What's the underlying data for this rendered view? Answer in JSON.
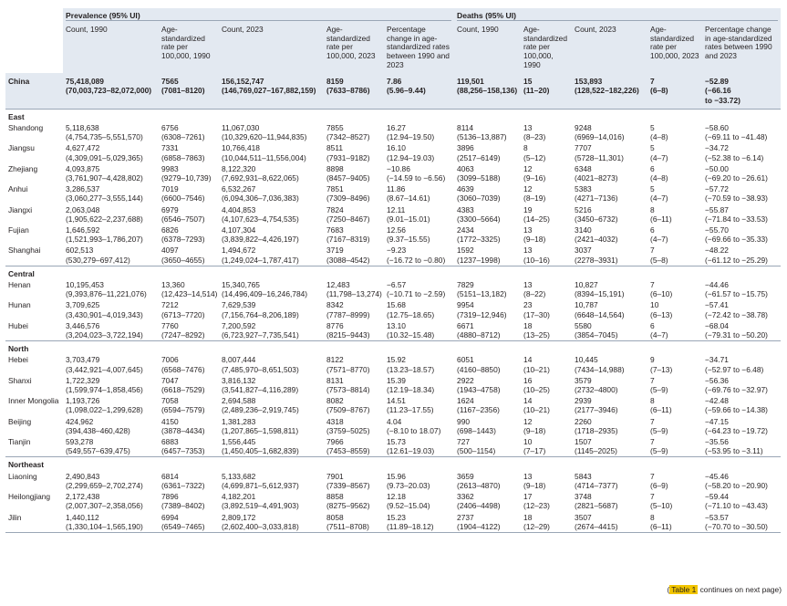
{
  "header": {
    "group_prevalence": "Prevalence (95% UI)",
    "group_deaths": "Deaths (95% UI)",
    "columns": [
      "Count, 1990",
      "Age-standardized rate per 100,000, 1990",
      "Count, 2023",
      "Age-standardized rate per 100,000, 2023",
      "Percentage change in age-standardized rates between 1990 and 2023",
      "Count, 1990",
      "Age-standardized rate per 100,000, 1990",
      "Count, 2023",
      "Age-standardized rate per 100,000, 2023",
      "Percentage change in age-standardized rates between 1990 and 2023"
    ]
  },
  "china": {
    "name": "China",
    "cells": [
      [
        "75,418,089",
        "(70,003,723–82,072,000)"
      ],
      [
        "7565",
        "(7081–8120)"
      ],
      [
        "156,152,747",
        "(146,769,027–167,882,159)"
      ],
      [
        "8159",
        "(7633–8786)"
      ],
      [
        "7.86",
        "(5.96–9.44)"
      ],
      [
        "119,501",
        "(88,256–158,136)"
      ],
      [
        "15",
        "(11–20)"
      ],
      [
        "153,893",
        "(128,522–182,226)"
      ],
      [
        "7",
        "(6–8)"
      ],
      [
        "−52.89",
        "(−66.16",
        "to −33.72)"
      ]
    ]
  },
  "regions": [
    {
      "name": "East",
      "rows": [
        {
          "name": "Shandong",
          "cells": [
            [
              "5,118,638",
              "(4,754,735–5,551,570)"
            ],
            [
              "6756",
              "(6308–7261)"
            ],
            [
              "11,067,030",
              "(10,329,620–11,944,835)"
            ],
            [
              "7855",
              "(7342–8527)"
            ],
            [
              "16.27",
              "(12.94–19.50)"
            ],
            [
              "8114",
              "(5136–13,887)"
            ],
            [
              "13",
              "(8–23)"
            ],
            [
              "9248",
              "(6969–14,016)"
            ],
            [
              "5",
              "(4–8)"
            ],
            [
              "−58.60",
              "(−69.11 to −41.48)"
            ]
          ]
        },
        {
          "name": "Jiangsu",
          "cells": [
            [
              "4,627,472",
              "(4,309,091–5,029,365)"
            ],
            [
              "7331",
              "(6858–7863)"
            ],
            [
              "10,766,418",
              "(10,044,511–11,556,004)"
            ],
            [
              "8511",
              "(7931–9182)"
            ],
            [
              "16.10",
              "(12.94–19.03)"
            ],
            [
              "3896",
              "(2517–6149)"
            ],
            [
              "8",
              "(5–12)"
            ],
            [
              "7707",
              "(5728–11,301)"
            ],
            [
              "5",
              "(4–7)"
            ],
            [
              "−34.72",
              "(−52.38 to −6.14)"
            ]
          ]
        },
        {
          "name": "Zhejiang",
          "cells": [
            [
              "4,093,875",
              "(3,761,907–4,428,802)"
            ],
            [
              "9983",
              "(9279–10,739)"
            ],
            [
              "8,122,320",
              "(7,692,931–8,622,065)"
            ],
            [
              "8898",
              "(8457–9405)"
            ],
            [
              "−10.86",
              "(−14.59 to −6.56)"
            ],
            [
              "4063",
              "(3099–5188)"
            ],
            [
              "12",
              "(9–16)"
            ],
            [
              "6348",
              "(4021–8273)"
            ],
            [
              "6",
              "(4–8)"
            ],
            [
              "−50.00",
              "(−69.20 to −26.61)"
            ]
          ]
        },
        {
          "name": "Anhui",
          "cells": [
            [
              "3,286,537",
              "(3,060,277–3,555,144)"
            ],
            [
              "7019",
              "(6600–7546)"
            ],
            [
              "6,532,267",
              "(6,094,306–7,036,383)"
            ],
            [
              "7851",
              "(7309–8496)"
            ],
            [
              "11.86",
              "(8.67–14.61)"
            ],
            [
              "4639",
              "(3060–7039)"
            ],
            [
              "12",
              "(8–19)"
            ],
            [
              "5383",
              "(4271–7136)"
            ],
            [
              "5",
              "(4–7)"
            ],
            [
              "−57.72",
              "(−70.59 to −38.93)"
            ]
          ]
        },
        {
          "name": "Jiangxi",
          "cells": [
            [
              "2,063,048",
              "(1,905,622–2,237,688)"
            ],
            [
              "6979",
              "(6546–7507)"
            ],
            [
              "4,404,853",
              "(4,107,623–4,754,535)"
            ],
            [
              "7824",
              "(7250–8467)"
            ],
            [
              "12.11",
              "(9.01–15.01)"
            ],
            [
              "4383",
              "(3300–5664)"
            ],
            [
              "19",
              "(14–25)"
            ],
            [
              "5216",
              "(3450–6732)"
            ],
            [
              "8",
              "(6–11)"
            ],
            [
              "−55.87",
              "(−71.84 to −33.53)"
            ]
          ]
        },
        {
          "name": "Fujian",
          "cells": [
            [
              "1,646,592",
              "(1,521,993–1,786,207)"
            ],
            [
              "6826",
              "(6378–7293)"
            ],
            [
              "4,107,304",
              "(3,839,822–4,426,197)"
            ],
            [
              "7683",
              "(7167–8319)"
            ],
            [
              "12.56",
              "(9.37–15.55)"
            ],
            [
              "2434",
              "(1772–3325)"
            ],
            [
              "13",
              "(9–18)"
            ],
            [
              "3140",
              "(2421–4032)"
            ],
            [
              "6",
              "(4–7)"
            ],
            [
              "−55.70",
              "(−69.66 to −35.33)"
            ]
          ]
        },
        {
          "name": "Shanghai",
          "cells": [
            [
              "602,513",
              "(530,279–697,412)"
            ],
            [
              "4097",
              "(3650–4655)"
            ],
            [
              "1,494,672",
              "(1,249,024–1,787,417)"
            ],
            [
              "3719",
              "(3088–4542)"
            ],
            [
              "−9.23",
              "(−16.72 to −0.80)"
            ],
            [
              "1592",
              "(1237–1998)"
            ],
            [
              "13",
              "(10–16)"
            ],
            [
              "3037",
              "(2278–3931)"
            ],
            [
              "7",
              "(5–8)"
            ],
            [
              "−48.22",
              "(−61.12 to −25.29)"
            ]
          ]
        }
      ]
    },
    {
      "name": "Central",
      "rows": [
        {
          "name": "Henan",
          "cells": [
            [
              "10,195,453",
              "(9,393,876–11,221,076)"
            ],
            [
              "13,360",
              "(12,423–14,514)"
            ],
            [
              "15,340,765",
              "(14,496,409–16,246,784)"
            ],
            [
              "12,483",
              "(11,798–13,274)"
            ],
            [
              "−6.57",
              "(−10.71 to −2.59)"
            ],
            [
              "7829",
              "(5151–13,182)"
            ],
            [
              "13",
              "(8–22)"
            ],
            [
              "10,827",
              "(8394–15,191)"
            ],
            [
              "7",
              "(6–10)"
            ],
            [
              "−44.46",
              "(−61.57 to −15.75)"
            ]
          ]
        },
        {
          "name": "Hunan",
          "cells": [
            [
              "3,709,625",
              "(3,430,901–4,019,343)"
            ],
            [
              "7212",
              "(6713–7720)"
            ],
            [
              "7,629,539",
              "(7,156,764–8,206,189)"
            ],
            [
              "8342",
              "(7787–8999)"
            ],
            [
              "15.68",
              "(12.75–18.65)"
            ],
            [
              "9954",
              "(7319–12,946)"
            ],
            [
              "23",
              "(17–30)"
            ],
            [
              "10,787",
              "(6648–14,564)"
            ],
            [
              "10",
              "(6–13)"
            ],
            [
              "−57.41",
              "(−72.42 to −38.78)"
            ]
          ]
        },
        {
          "name": "Hubei",
          "cells": [
            [
              "3,446,576",
              "(3,204,023–3,722,194)"
            ],
            [
              "7760",
              "(7247–8292)"
            ],
            [
              "7,200,592",
              "(6,723,927–7,735,541)"
            ],
            [
              "8776",
              "(8215–9443)"
            ],
            [
              "13.10",
              "(10.32–15.48)"
            ],
            [
              "6671",
              "(4880–8712)"
            ],
            [
              "18",
              "(13–25)"
            ],
            [
              "5580",
              "(3854–7045)"
            ],
            [
              "6",
              "(4–7)"
            ],
            [
              "−68.04",
              "(−79.31 to −50.20)"
            ]
          ]
        }
      ]
    },
    {
      "name": "North",
      "rows": [
        {
          "name": "Hebei",
          "cells": [
            [
              "3,703,479",
              "(3,442,921–4,007,645)"
            ],
            [
              "7006",
              "(6568–7476)"
            ],
            [
              "8,007,444",
              "(7,485,970–8,651,503)"
            ],
            [
              "8122",
              "(7571–8770)"
            ],
            [
              "15.92",
              "(13.23–18.57)"
            ],
            [
              "6051",
              "(4160–8850)"
            ],
            [
              "14",
              "(10–21)"
            ],
            [
              "10,445",
              "(7434–14,988)"
            ],
            [
              "9",
              "(7–13)"
            ],
            [
              "−34.71",
              "(−52.97 to −6.48)"
            ]
          ]
        },
        {
          "name": "Shanxi",
          "cells": [
            [
              "1,722,329",
              "(1,599,974–1,858,456)"
            ],
            [
              "7047",
              "(6618–7529)"
            ],
            [
              "3,816,132",
              "(3,541,827–4,116,289)"
            ],
            [
              "8131",
              "(7573–8814)"
            ],
            [
              "15.39",
              "(12.19–18.34)"
            ],
            [
              "2922",
              "(1943–4758)"
            ],
            [
              "16",
              "(10–25)"
            ],
            [
              "3579",
              "(2732–4800)"
            ],
            [
              "7",
              "(5–9)"
            ],
            [
              "−56.36",
              "(−69.76 to −32.97)"
            ]
          ]
        },
        {
          "name": "Inner Mongolia",
          "cells": [
            [
              "1,193,726",
              "(1,098,022–1,299,628)"
            ],
            [
              "7058",
              "(6594–7579)"
            ],
            [
              "2,694,588",
              "(2,489,236–2,919,745)"
            ],
            [
              "8082",
              "(7509–8767)"
            ],
            [
              "14.51",
              "(11.23–17.55)"
            ],
            [
              "1624",
              "(1167–2356)"
            ],
            [
              "14",
              "(10–21)"
            ],
            [
              "2939",
              "(2177–3946)"
            ],
            [
              "8",
              "(6–11)"
            ],
            [
              "−42.48",
              "(−59.66 to −14.38)"
            ]
          ]
        },
        {
          "name": "Beijing",
          "cells": [
            [
              "424,962",
              "(394,438–460,428)"
            ],
            [
              "4150",
              "(3878–4434)"
            ],
            [
              "1,381,283",
              "(1,207,865–1,598,811)"
            ],
            [
              "4318",
              "(3759–5025)"
            ],
            [
              "4.04",
              "(−8.10 to 18.07)"
            ],
            [
              "990",
              "(698–1443)"
            ],
            [
              "12",
              "(9–18)"
            ],
            [
              "2260",
              "(1718–2935)"
            ],
            [
              "7",
              "(5–9)"
            ],
            [
              "−47.15",
              "(−64.23 to −19.72)"
            ]
          ]
        },
        {
          "name": "Tianjin",
          "cells": [
            [
              "593,278",
              "(549,557–639,475)"
            ],
            [
              "6883",
              "(6457–7353)"
            ],
            [
              "1,556,445",
              "(1,450,405–1,682,839)"
            ],
            [
              "7966",
              "(7453–8559)"
            ],
            [
              "15.73",
              "(12.61–19.03)"
            ],
            [
              "727",
              "(500–1154)"
            ],
            [
              "10",
              "(7–17)"
            ],
            [
              "1507",
              "(1145–2025)"
            ],
            [
              "7",
              "(5–9)"
            ],
            [
              "−35.56",
              "(−53.95 to −3.11)"
            ]
          ]
        }
      ]
    },
    {
      "name": "Northeast",
      "rows": [
        {
          "name": "Liaoning",
          "cells": [
            [
              "2,490,843",
              "(2,299,659–2,702,274)"
            ],
            [
              "6814",
              "(6361–7322)"
            ],
            [
              "5,133,682",
              "(4,699,871–5,612,937)"
            ],
            [
              "7901",
              "(7339–8567)"
            ],
            [
              "15.96",
              "(9.73–20.03)"
            ],
            [
              "3659",
              "(2613–4870)"
            ],
            [
              "13",
              "(9–18)"
            ],
            [
              "5843",
              "(4714–7377)"
            ],
            [
              "7",
              "(6–9)"
            ],
            [
              "−45.46",
              "(−58.20 to −20.90)"
            ]
          ]
        },
        {
          "name": "Heilongjiang",
          "cells": [
            [
              "2,172,438",
              "(2,007,307–2,358,056)"
            ],
            [
              "7896",
              "(7389–8402)"
            ],
            [
              "4,182,201",
              "(3,892,519–4,491,903)"
            ],
            [
              "8858",
              "(8275–9562)"
            ],
            [
              "12.18",
              "(9.52–15.04)"
            ],
            [
              "3362",
              "(2406–4498)"
            ],
            [
              "17",
              "(12–23)"
            ],
            [
              "3748",
              "(2821–5687)"
            ],
            [
              "7",
              "(5–10)"
            ],
            [
              "−59.44",
              "(−71.10 to −43.43)"
            ]
          ]
        },
        {
          "name": "Jilin",
          "cells": [
            [
              "1,440,112",
              "(1,330,104–1,565,190)"
            ],
            [
              "6994",
              "(6549–7465)"
            ],
            [
              "2,809,172",
              "(2,602,400–3,033,818)"
            ],
            [
              "8058",
              "(7511–8708)"
            ],
            [
              "15.23",
              "(11.89–18.12)"
            ],
            [
              "2737",
              "(1904–4122)"
            ],
            [
              "18",
              "(12–29)"
            ],
            [
              "3507",
              "(2674–4415)"
            ],
            [
              "8",
              "(6–11)"
            ],
            [
              "−53.57",
              "(−70.70 to −30.50)"
            ]
          ]
        }
      ]
    }
  ],
  "continuation": {
    "label": "Table 1",
    "rest": "continues on next page)",
    "open_paren": "("
  }
}
